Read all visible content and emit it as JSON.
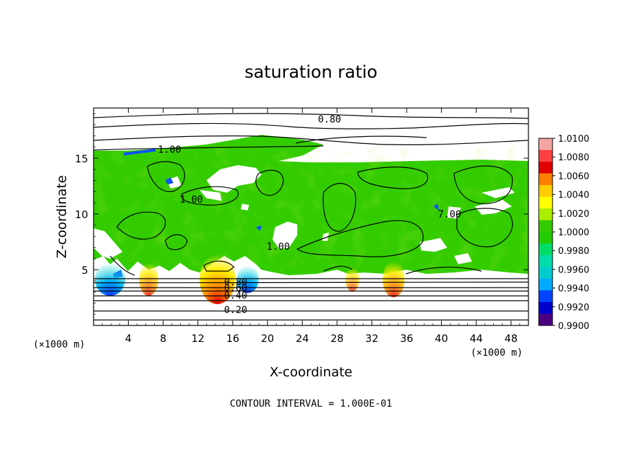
{
  "chart_data": {
    "type": "heatmap",
    "title": "saturation ratio",
    "xlabel": "X-coordinate",
    "ylabel": "Z-coordinate",
    "x_unit_left": "(×1000 m)",
    "x_unit_right": "(×1000 m)",
    "xlim": [
      0,
      50
    ],
    "ylim": [
      0,
      19.5
    ],
    "x_ticks": [
      4,
      8,
      12,
      16,
      20,
      24,
      28,
      32,
      36,
      40,
      44,
      48
    ],
    "y_ticks": [
      5,
      10,
      15
    ],
    "footer": "CONTOUR INTERVAL = 1.000E-01",
    "colorbar": {
      "min": 0.99,
      "max": 1.01,
      "labels": [
        "1.0100",
        "1.0080",
        "1.0060",
        "1.0040",
        "1.0020",
        "1.0000",
        "0.9980",
        "0.9960",
        "0.9940",
        "0.9920",
        "0.9900"
      ],
      "colors": [
        "#f5a3a3",
        "#ff4040",
        "#e00000",
        "#ff7f00",
        "#ffcc00",
        "#ffff00",
        "#aaee00",
        "#33cc00",
        "#22cc00",
        "#00dd66",
        "#00ddaa",
        "#00cccc",
        "#00aaff",
        "#0044ff",
        "#0000cc",
        "#4b0082"
      ]
    },
    "contour_labels": [
      {
        "text": "0.80",
        "x": 25.8,
        "y": 18.2
      },
      {
        "text": "1.00",
        "x": 7.4,
        "y": 15.5
      },
      {
        "text": "1.00",
        "x": 9.9,
        "y": 11.0
      },
      {
        "text": "1.00",
        "x": 19.9,
        "y": 6.8
      },
      {
        "text": "7.00",
        "x": 39.6,
        "y": 9.7
      },
      {
        "text": "0.80",
        "x": 15.0,
        "y": 3.6
      },
      {
        "text": "0.60",
        "x": 15.0,
        "y": 3.1
      },
      {
        "text": "0.40",
        "x": 15.0,
        "y": 2.4
      },
      {
        "text": "0.20",
        "x": 15.0,
        "y": 1.1
      }
    ]
  }
}
